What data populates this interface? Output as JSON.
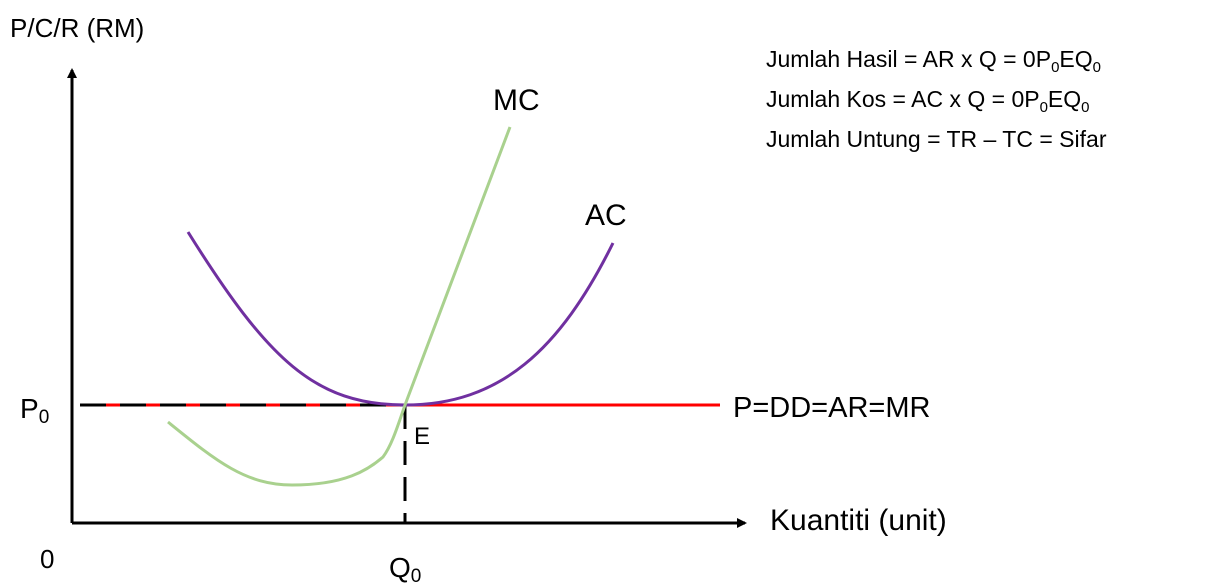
{
  "axes": {
    "y_label": "P/C/R (RM)",
    "x_label": "Kuantiti (unit)",
    "origin": "0",
    "price_label": {
      "base": "P",
      "sub": "0"
    },
    "quantity_label": {
      "base": "Q",
      "sub": "0"
    }
  },
  "curves": {
    "mc": {
      "label": "MC",
      "color": "#a9d18e"
    },
    "ac": {
      "label": "AC",
      "color": "#7030a0"
    },
    "demand": {
      "label": "P=DD=AR=MR",
      "color": "#ff0000"
    }
  },
  "point_e": "E",
  "equations": [
    {
      "prefix": "Jumlah Hasil = AR x Q = 0P",
      "sub1": "0",
      "mid": "EQ",
      "sub2": "0"
    },
    {
      "prefix": "Jumlah Kos = AC x Q = 0P",
      "sub1": "0",
      "mid": "EQ",
      "sub2": "0"
    },
    {
      "text": "Jumlah Untung = TR – TC = Sifar"
    }
  ]
}
